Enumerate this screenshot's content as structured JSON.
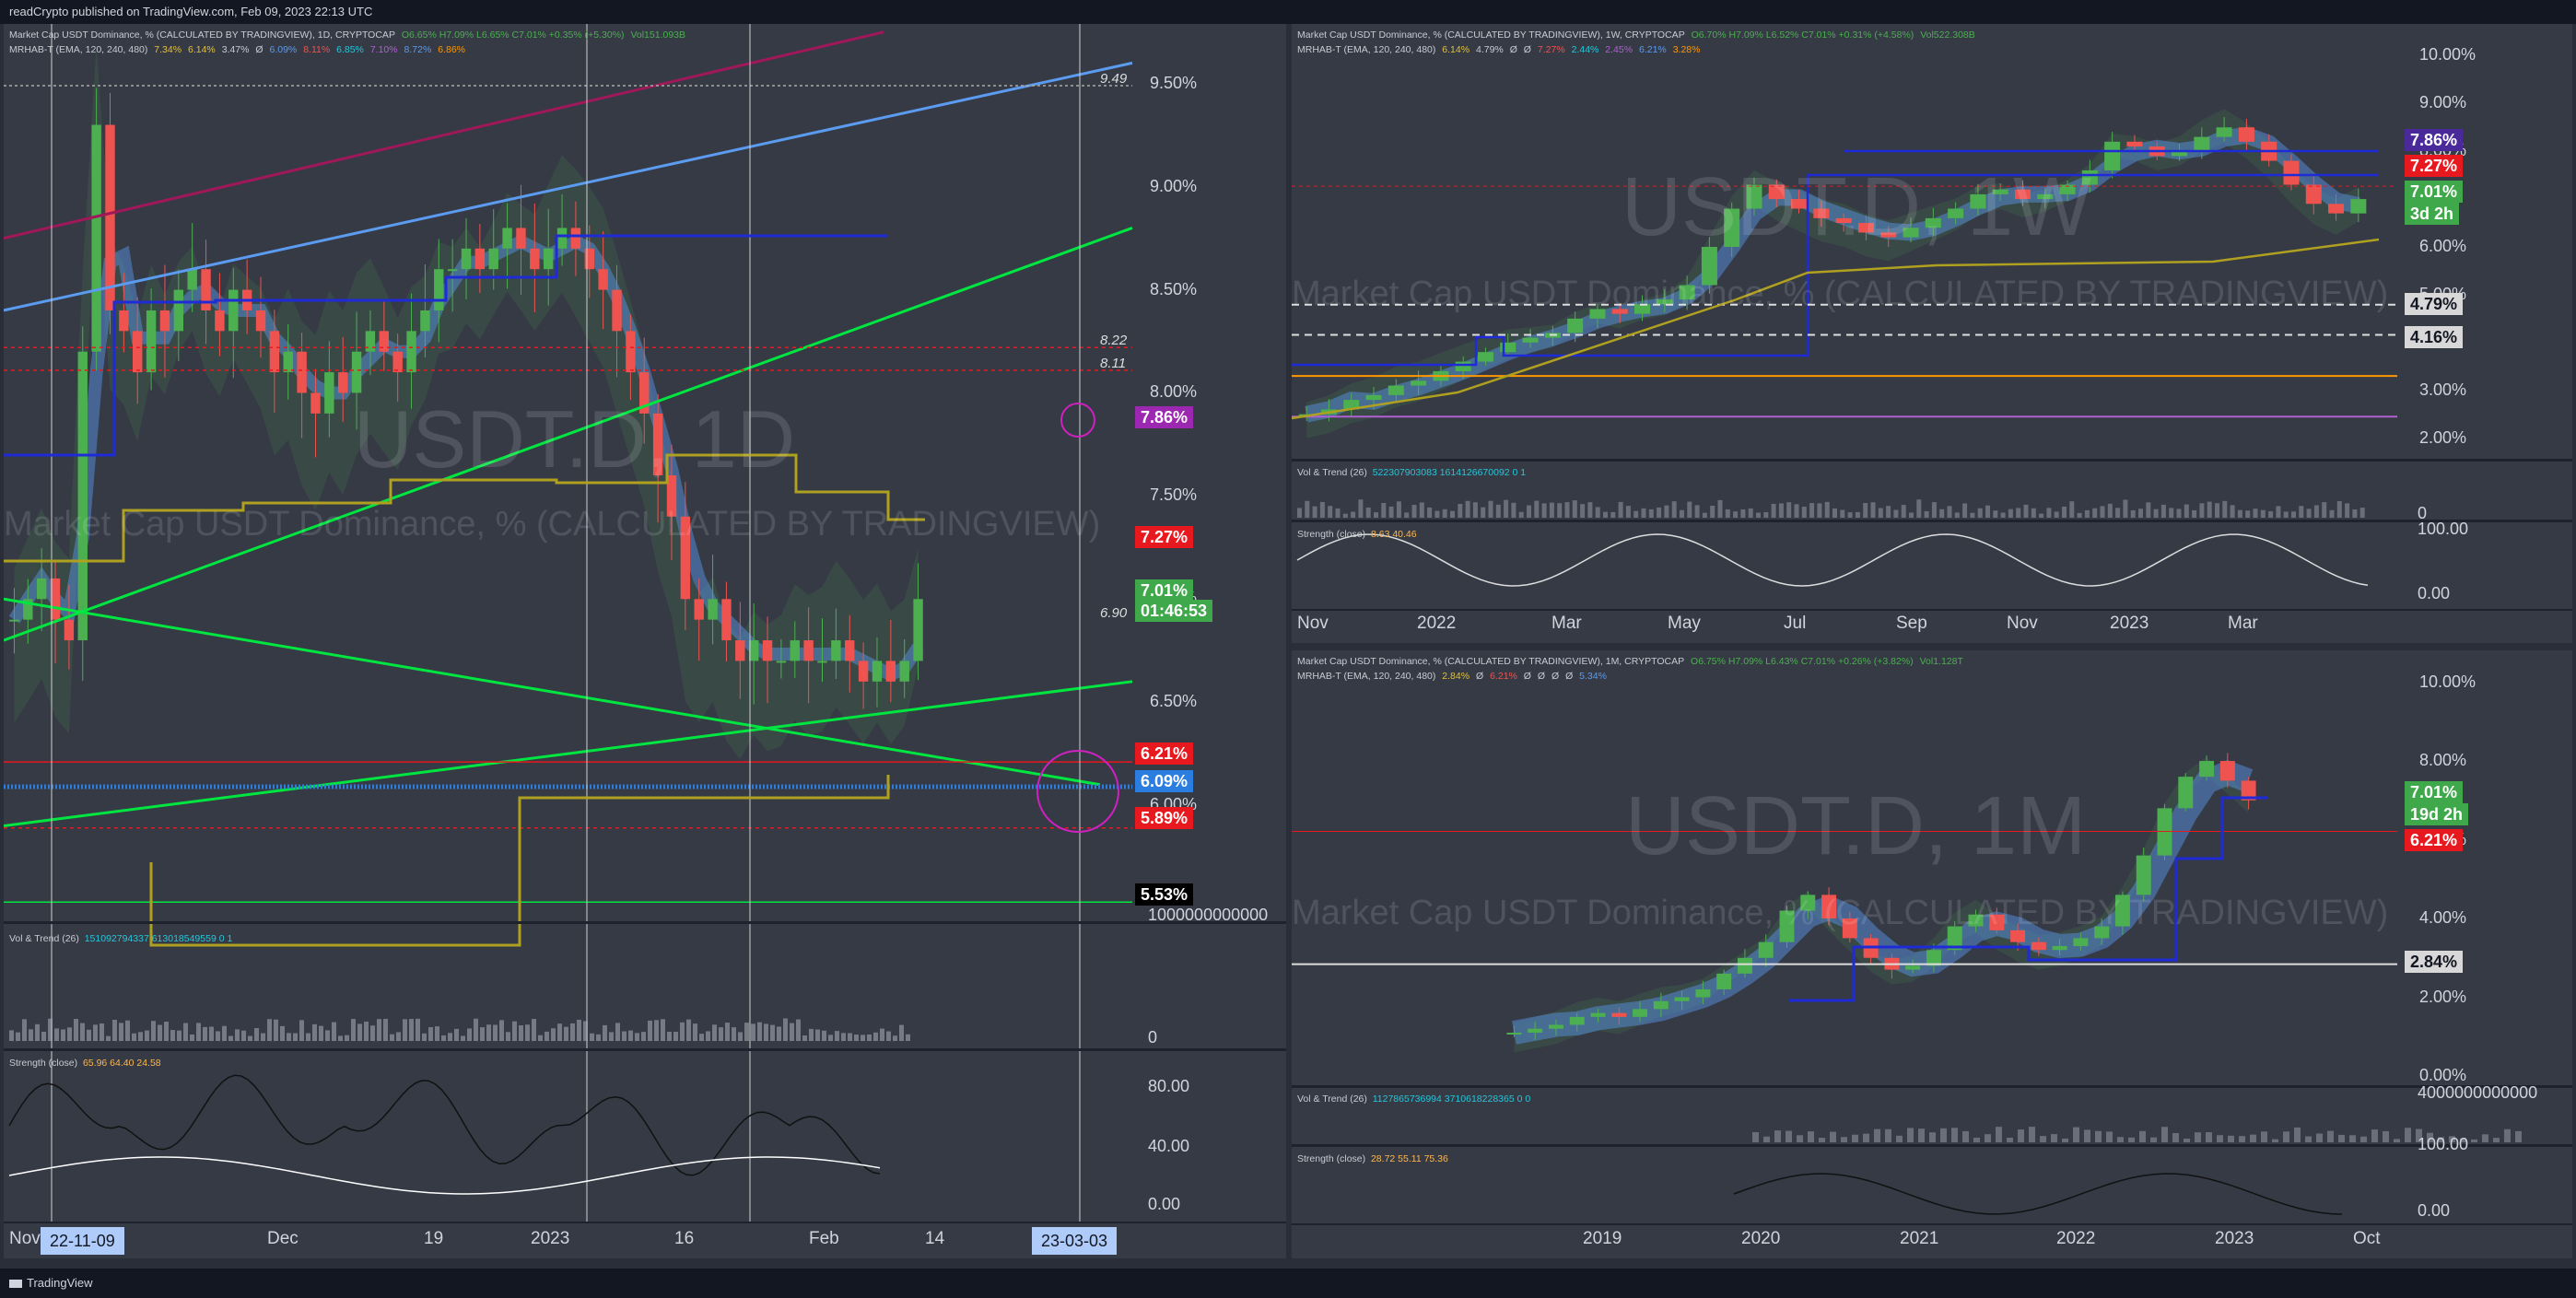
{
  "header_text": "readCrypto published on TradingView.com, Feb 09, 2023 22:13 UTC",
  "footer_text": "TradingView",
  "colors": {
    "bg": "#2a2e39",
    "panel": "#353a45",
    "up": "#4caf50",
    "down": "#ef5350",
    "blue": "#1f2bd6",
    "green": "#00e640",
    "lightblue": "#5b9bf0",
    "maroon": "#a0185a",
    "olive": "#b0a020",
    "magenta": "#d020c0"
  },
  "daily": {
    "title": "Market Cap USDT Dominance, % (CALCULATED BY TRADINGVIEW), 1D, CRYPTOCAP",
    "ohlc": "O6.65% H7.09% L6.65% C7.01% +0.35% (+5.30%)",
    "vol": "Vol151.093B",
    "indicator": "MRHAB-T (EMA, 120, 240, 480)",
    "indicator_vals": [
      "7.34%",
      "6.14%",
      "3.47%",
      "Ø",
      "6.09%",
      "8.11%",
      "6.85%",
      "7.10%",
      "8.72%",
      "6.86%"
    ],
    "watermark": "USDT.D, 1D",
    "subwatermark": "Market Cap USDT Dominance, % (CALCULATED BY TRADINGVIEW)",
    "y_ticks": [
      "9.50%",
      "9.00%",
      "8.50%",
      "8.00%",
      "7.50%",
      "7.00%",
      "6.50%",
      "6.00%"
    ],
    "level_labels": [
      "9.49",
      "8.22",
      "8.11",
      "6.90"
    ],
    "price_tags": [
      {
        "text": "7.86%",
        "color": "#9c27b0"
      },
      {
        "text": "7.27%",
        "color": "#e8191e"
      },
      {
        "text": "7.01%",
        "color": "#3fa84a"
      },
      {
        "text": "01:46:53",
        "color": "#3fa84a"
      },
      {
        "text": "6.21%",
        "color": "#e8191e"
      },
      {
        "text": "6.09%",
        "color": "#2b7de0"
      },
      {
        "text": "5.89%",
        "color": "#e8191e"
      },
      {
        "text": "5.53%",
        "color": "#000000"
      }
    ],
    "x_labels": [
      "Nov",
      "Dec",
      "19",
      "2023",
      "16",
      "Feb",
      "14"
    ],
    "x_cursor_left": "22-11-09",
    "x_cursor_right": "23-03-03",
    "vol_trend_title": "Vol & Trend (26)",
    "vol_trend_vals": "151092794337  613018549559  0  1",
    "vol_axis": [
      "1000000000000",
      "0"
    ],
    "strength_title": "Strength (close)",
    "strength_vals": "65.96  64.40  24.58",
    "strength_axis": [
      "80.00",
      "40.00",
      "0.00"
    ]
  },
  "weekly": {
    "title": "Market Cap USDT Dominance, % (CALCULATED BY TRADINGVIEW), 1W, CRYPTOCAP",
    "ohlc": "O6.70% H7.09% L6.52% C7.01% +0.31% (+4.58%)",
    "vol": "Vol522.308B",
    "indicator": "MRHAB-T (EMA, 120, 240, 480)",
    "indicator_vals": [
      "6.14%",
      "4.79%",
      "Ø",
      "Ø",
      "7.27%",
      "2.44%",
      "2.45%",
      "6.21%",
      "3.28%"
    ],
    "watermark": "USDT.D, 1W",
    "subwatermark": "Market Cap USDT Dominance, % (CALCULATED BY TRADINGVIEW)",
    "y_ticks": [
      "10.00%",
      "9.00%",
      "8.00%",
      "6.00%",
      "5.00%",
      "3.00%",
      "2.00%"
    ],
    "price_tags": [
      {
        "text": "7.86%",
        "color": "#4a2a9a"
      },
      {
        "text": "7.27%",
        "color": "#e8191e"
      },
      {
        "text": "7.01%",
        "color": "#3fa84a"
      },
      {
        "text": "3d 2h",
        "color": "#3fa84a"
      },
      {
        "text": "4.79%",
        "color": "#d8d8d8"
      },
      {
        "text": "4.16%",
        "color": "#d8d8d8"
      }
    ],
    "x_labels": [
      "Nov",
      "2022",
      "Mar",
      "May",
      "Jul",
      "Sep",
      "Nov",
      "2023",
      "Mar"
    ],
    "vol_trend_title": "Vol & Trend (26)",
    "vol_trend_vals": "522307903083  1614126670092  0  1",
    "vol_axis": [
      "0"
    ],
    "strength_title": "Strength (close)",
    "strength_vals": "8.63  40.46",
    "strength_axis": [
      "100.00",
      "0.00"
    ]
  },
  "monthly": {
    "title": "Market Cap USDT Dominance, % (CALCULATED BY TRADINGVIEW), 1M, CRYPTOCAP",
    "ohlc": "O6.75% H7.09% L6.43% C7.01% +0.26% (+3.82%)",
    "vol": "Vol1.128T",
    "indicator": "MRHAB-T (EMA, 120, 240, 480)",
    "indicator_vals": [
      "2.84%",
      "Ø",
      "6.21%",
      "Ø",
      "Ø",
      "Ø",
      "Ø",
      "5.34%"
    ],
    "watermark": "USDT.D, 1M",
    "subwatermark": "Market Cap USDT Dominance, % (CALCULATED BY TRADINGVIEW)",
    "y_ticks": [
      "10.00%",
      "8.00%",
      "6.00%",
      "4.00%",
      "2.00%",
      "0.00%"
    ],
    "price_tags": [
      {
        "text": "7.01%",
        "color": "#3fa84a"
      },
      {
        "text": "19d 2h",
        "color": "#3fa84a"
      },
      {
        "text": "6.21%",
        "color": "#e8191e"
      },
      {
        "text": "2.84%",
        "color": "#d8d8d8"
      }
    ],
    "x_labels": [
      "2019",
      "2020",
      "2021",
      "2022",
      "2023",
      "Oct"
    ],
    "vol_trend_title": "Vol & Trend (26)",
    "vol_trend_vals": "1127865736994  3710618228365  0  0",
    "vol_axis": [
      "4000000000000"
    ],
    "strength_title": "Strength (close)",
    "strength_vals": "28.72  55.11  75.36",
    "strength_axis": [
      "100.00",
      "0.00"
    ]
  },
  "chart_data": [
    {
      "type": "candlestick",
      "title": "USDT.D, 1D",
      "ylim": [
        5.5,
        9.7
      ],
      "closes": [
        6.9,
        7.0,
        7.1,
        6.9,
        6.8,
        8.2,
        9.3,
        8.4,
        8.3,
        8.1,
        8.4,
        8.3,
        8.5,
        8.6,
        8.4,
        8.3,
        8.5,
        8.4,
        8.3,
        8.1,
        8.2,
        8.0,
        7.9,
        8.1,
        8.0,
        8.2,
        8.3,
        8.2,
        8.1,
        8.3,
        8.4,
        8.6,
        8.6,
        8.7,
        8.6,
        8.7,
        8.8,
        8.7,
        8.6,
        8.7,
        8.8,
        8.7,
        8.6,
        8.5,
        8.3,
        8.1,
        7.9,
        7.6,
        7.4,
        7.0,
        6.9,
        7.0,
        6.8,
        6.7,
        6.8,
        6.7,
        6.7,
        6.8,
        6.7,
        6.7,
        6.8,
        6.7,
        6.6,
        6.7,
        6.6,
        6.7,
        7.0
      ]
    },
    {
      "type": "candlestick",
      "title": "USDT.D, 1W",
      "ylim": [
        1.8,
        10.2
      ],
      "closes": [
        2.5,
        2.6,
        2.8,
        2.9,
        3.1,
        3.2,
        3.4,
        3.6,
        3.8,
        4.0,
        4.1,
        4.2,
        4.5,
        4.7,
        4.6,
        4.8,
        4.9,
        5.2,
        6.0,
        6.8,
        7.3,
        7.0,
        6.8,
        6.6,
        6.5,
        6.3,
        6.2,
        6.4,
        6.6,
        6.8,
        7.1,
        7.2,
        7.0,
        7.1,
        7.3,
        7.6,
        8.2,
        8.1,
        7.9,
        8.0,
        8.3,
        8.5,
        8.2,
        7.8,
        7.3,
        6.9,
        6.7,
        7.0
      ]
    },
    {
      "type": "candlestick",
      "title": "USDT.D, 1M",
      "ylim": [
        0,
        10.2
      ],
      "closes": [
        1.1,
        1.2,
        1.3,
        1.5,
        1.6,
        1.5,
        1.7,
        1.9,
        2.0,
        2.2,
        2.6,
        3.0,
        3.4,
        4.2,
        4.6,
        4.0,
        3.5,
        3.0,
        2.7,
        2.8,
        3.2,
        3.8,
        4.1,
        3.7,
        3.4,
        3.2,
        3.3,
        3.5,
        3.8,
        4.6,
        5.6,
        6.8,
        7.6,
        8.0,
        7.5,
        7.0
      ]
    }
  ]
}
